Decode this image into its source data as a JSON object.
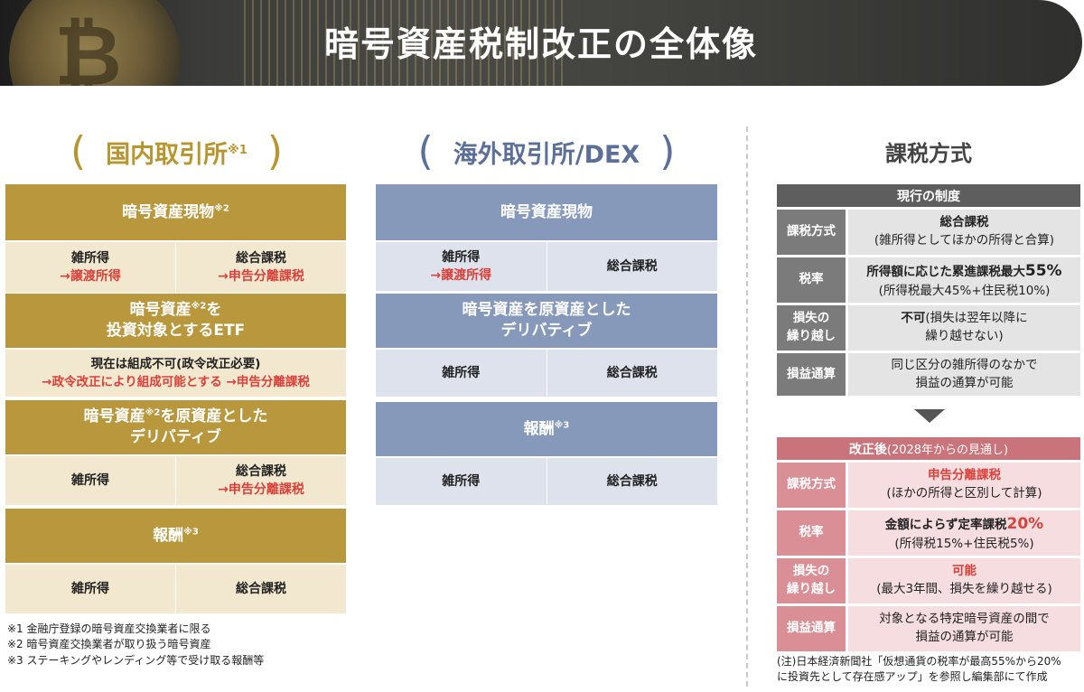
{
  "header": {
    "title": "暗号資産税制改正の全体像"
  },
  "domestic": {
    "heading": "国内取引所",
    "heading_mark": "※1",
    "blocks": [
      {
        "title": "暗号資産現物",
        "mark": "※2",
        "left": [
          "雑所得",
          "→譲渡所得"
        ],
        "right": [
          "総合課税",
          "→申告分離課税"
        ]
      },
      {
        "title_line1": "暗号資産",
        "mark": "※2",
        "title_line1b": "を",
        "title_line2": "投資対象とするETF",
        "note_line1": "現在は組成不可(政令改正必要)",
        "note_line2": "→政令改正により組成可能とする →申告分離課税"
      },
      {
        "title_line1": "暗号資産",
        "mark": "※2",
        "title_line1b": "を原資産とした",
        "title_line2": "デリバティブ",
        "left": [
          "雑所得"
        ],
        "right": [
          "総合課税",
          "→申告分離課税"
        ]
      },
      {
        "title": "報酬",
        "mark": "※3",
        "left": [
          "雑所得"
        ],
        "right": [
          "総合課税"
        ]
      }
    ]
  },
  "overseas": {
    "heading": "海外取引所/DEX",
    "blocks": [
      {
        "title": "暗号資産現物",
        "left": [
          "雑所得",
          "→譲渡所得"
        ],
        "right": [
          "総合課税"
        ]
      },
      {
        "title_line1": "暗号資産を原資産とした",
        "title_line2": "デリバティブ",
        "left": [
          "雑所得"
        ],
        "right": [
          "総合課税"
        ]
      },
      {
        "title": "報酬",
        "mark": "※3",
        "left": [
          "雑所得"
        ],
        "right": [
          "総合課税"
        ]
      }
    ]
  },
  "footnotes": [
    "※1 金融庁登録の暗号資産交換業者に限る",
    "※2 暗号資産交換業者が取り扱う暗号資産",
    "※3 ステーキングやレンディング等で受け取る報酬等"
  ],
  "tax": {
    "heading": "課税方式",
    "current": {
      "header": "現行の制度",
      "rows": [
        {
          "label": "課税方式",
          "line1": "総合課税",
          "line2": "(雑所得としてほかの所得と合算)"
        },
        {
          "label": "税率",
          "line1": "所得額に応じた累進課税最大",
          "line1_emph": "55%",
          "line2": "(所得税最大45%+住民税10%)"
        },
        {
          "label_line1": "損失の",
          "label_line2": "繰り越し",
          "line1": "不可",
          "line1_rest": "(損失は翌年以降に",
          "line2": "繰り越せない)"
        },
        {
          "label": "損益通算",
          "line1": "同じ区分の雑所得のなかで",
          "line2": "損益の通算が可能"
        }
      ]
    },
    "revised": {
      "header": "改正後",
      "header_sub": "(2028年からの見通し)",
      "rows": [
        {
          "label": "課税方式",
          "line1": "申告分離課税",
          "line2": "(ほかの所得と区別して計算)"
        },
        {
          "label": "税率",
          "line1": "金額によらず定率課税",
          "line1_emph": "20%",
          "line2": "(所得税15%+住民税5%)"
        },
        {
          "label_line1": "損失の",
          "label_line2": "繰り越し",
          "line1": "可能",
          "line2": "(最大3年間、損失を繰り越せる)"
        },
        {
          "label": "損益通算",
          "line1": "対象となる特定暗号資産の間で",
          "line2": "損益の通算が可能"
        }
      ]
    },
    "source_line1": "(注)日本経済新聞社「仮想通貨の税率が最高55%から20%",
    "source_line2": "に投資先として存在感アップ」を参照し編集部にて作成"
  },
  "colors": {
    "gold": "#b9973c",
    "gold_light": "#f2e8cf",
    "navy": "#8799bb",
    "navy_light": "#dde2ec",
    "red": "#d9413a",
    "rose": "#c9737a"
  }
}
